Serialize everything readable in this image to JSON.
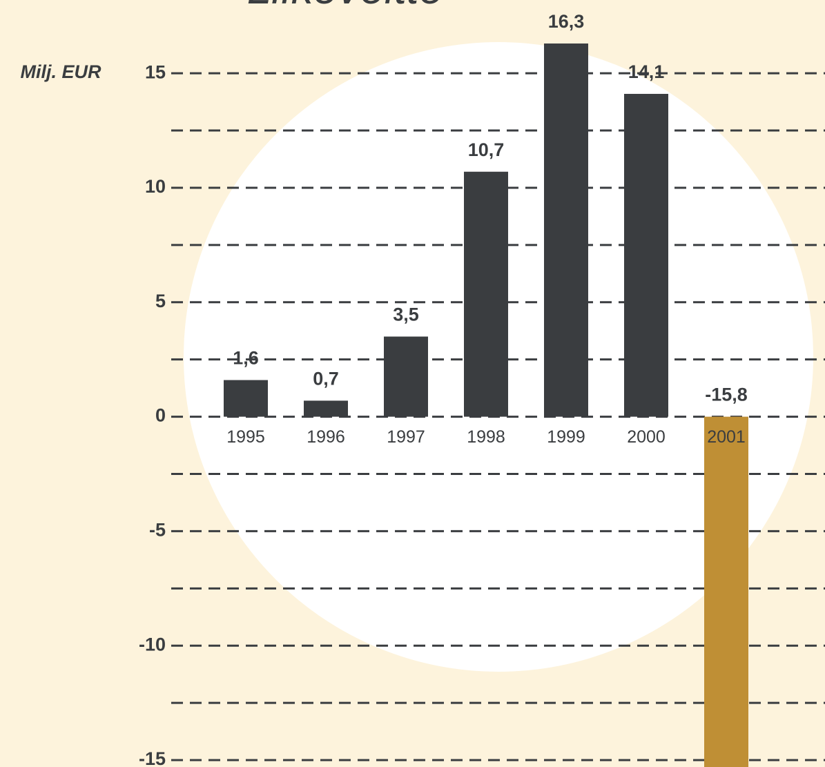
{
  "chart_data": {
    "type": "bar",
    "title": "Liikevoitto",
    "y_label": "Milj. EUR",
    "categories": [
      "1995",
      "1996",
      "1997",
      "1998",
      "1999",
      "2000",
      "2001"
    ],
    "values": [
      1.6,
      0.7,
      3.5,
      10.7,
      16.3,
      14.1,
      -15.8
    ],
    "value_labels": [
      "1,6",
      "0,7",
      "3,5",
      "10,7",
      "16,3",
      "14,1",
      "-15,8"
    ],
    "colors": [
      "#3a3d40",
      "#3a3d40",
      "#3a3d40",
      "#3a3d40",
      "#3a3d40",
      "#3a3d40",
      "#bf8f35"
    ],
    "ylim": [
      -15.3,
      18.2
    ],
    "yticks": [
      15,
      10,
      5,
      0,
      -5,
      -10,
      -15
    ],
    "minor_yticks": [
      12.5,
      7.5,
      2.5,
      -2.5,
      -7.5,
      -12.5
    ],
    "grid": true
  }
}
